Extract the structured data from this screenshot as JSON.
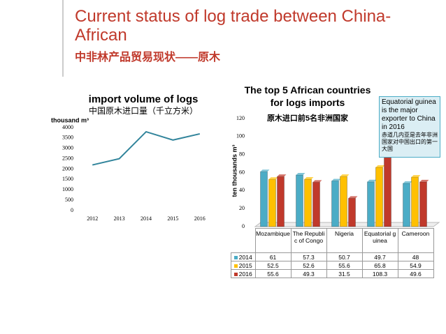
{
  "slide": {
    "title": "Current status of log trade between China-African",
    "subtitle": "中非林产品贸易现状——原木"
  },
  "chart_data": [
    {
      "type": "line",
      "title": "import volume of logs",
      "subtitle": "中国原木进口量（千立方米）",
      "y_label": "thousand m³",
      "categories": [
        "2012",
        "2013",
        "2014",
        "2015",
        "2016"
      ],
      "values": [
        2200,
        2500,
        3800,
        3400,
        3700
      ],
      "color": "#31849b",
      "ylim": [
        0,
        4000
      ],
      "yticks": [
        0,
        500,
        1000,
        1500,
        2000,
        2500,
        3000,
        3500,
        4000
      ],
      "grid": false
    },
    {
      "type": "bar",
      "title": "The top 5 African countries for logs imports",
      "subtitle": "原木进口前5名非洲国家",
      "y_label": "ten thousands m³",
      "categories": [
        "Mozambique",
        "The Republic of Congo",
        "Nigeria",
        "Equatorial guinea",
        "Cameroon"
      ],
      "series": [
        {
          "name": "2014",
          "color": "#4bacc6",
          "values": [
            61,
            57.3,
            50.7,
            49.7,
            48
          ]
        },
        {
          "name": "2015",
          "color": "#ffc000",
          "values": [
            52.5,
            52.6,
            55.6,
            65.8,
            54.9
          ]
        },
        {
          "name": "2016",
          "color": "#c0392b",
          "values": [
            55.6,
            49.3,
            31.5,
            108.3,
            49.6
          ]
        }
      ],
      "ylim": [
        0,
        120
      ],
      "yticks": [
        0,
        20,
        40,
        60,
        80,
        100,
        120
      ],
      "grid": false,
      "annotations": [
        "Equatorial guinea is the major exporter to China in 2016",
        "赤道几内亚是去年非洲国家对中国出口的第一大国"
      ]
    }
  ]
}
